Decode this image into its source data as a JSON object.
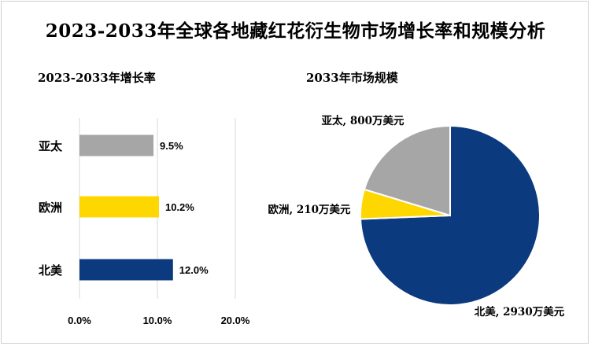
{
  "title": "2023-2033年全球各地藏红花衍生物市场增长率和规模分析",
  "chart_data": [
    {
      "type": "bar",
      "orientation": "horizontal",
      "title": "2023-2033年增长率",
      "categories": [
        "亚太",
        "欧洲",
        "北美"
      ],
      "values": [
        9.5,
        10.2,
        12.0
      ],
      "value_labels": [
        "9.5%",
        "10.2%",
        "12.0%"
      ],
      "colors": [
        "#a6a6a6",
        "#ffd700",
        "#0b3a7e"
      ],
      "xlim": [
        0,
        20
      ],
      "xticks": [
        0,
        10,
        20
      ],
      "xtick_labels": [
        "0.0%",
        "10.0%",
        "20.0%"
      ],
      "grid": true
    },
    {
      "type": "pie",
      "title": "2033年市场规模",
      "categories": [
        "北美",
        "欧洲",
        "亚太"
      ],
      "values": [
        2930,
        210,
        800
      ],
      "labels": [
        "北美, 2930万美元",
        "欧洲, 210万美元",
        "亚太, 800万美元"
      ],
      "colors": [
        "#0b3a7e",
        "#ffd700",
        "#a6a6a6"
      ]
    }
  ]
}
